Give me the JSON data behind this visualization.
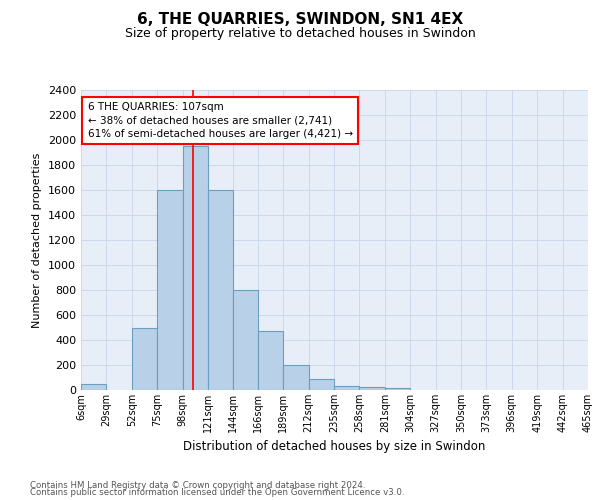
{
  "title": "6, THE QUARRIES, SWINDON, SN1 4EX",
  "subtitle": "Size of property relative to detached houses in Swindon",
  "xlabel": "Distribution of detached houses by size in Swindon",
  "ylabel": "Number of detached properties",
  "categories": [
    "6sqm",
    "29sqm",
    "52sqm",
    "75sqm",
    "98sqm",
    "121sqm",
    "144sqm",
    "166sqm",
    "189sqm",
    "212sqm",
    "235sqm",
    "258sqm",
    "281sqm",
    "304sqm",
    "327sqm",
    "350sqm",
    "373sqm",
    "396sqm",
    "419sqm",
    "442sqm",
    "465sqm"
  ],
  "bar_heights": [
    50,
    0,
    500,
    1600,
    1950,
    1600,
    800,
    470,
    200,
    90,
    30,
    25,
    20,
    0,
    0,
    0,
    0,
    0,
    0,
    0
  ],
  "bar_color": "#b8d0e8",
  "bar_edge_color": "#6a9fc0",
  "vline_x": 107,
  "vline_color": "red",
  "annotation_text": "6 THE QUARRIES: 107sqm\n← 38% of detached houses are smaller (2,741)\n61% of semi-detached houses are larger (4,421) →",
  "ylim": [
    0,
    2400
  ],
  "yticks": [
    0,
    200,
    400,
    600,
    800,
    1000,
    1200,
    1400,
    1600,
    1800,
    2000,
    2200,
    2400
  ],
  "grid_color": "#ccd8ec",
  "background_color": "#e8eef8",
  "footer1": "Contains HM Land Registry data © Crown copyright and database right 2024.",
  "footer2": "Contains public sector information licensed under the Open Government Licence v3.0."
}
